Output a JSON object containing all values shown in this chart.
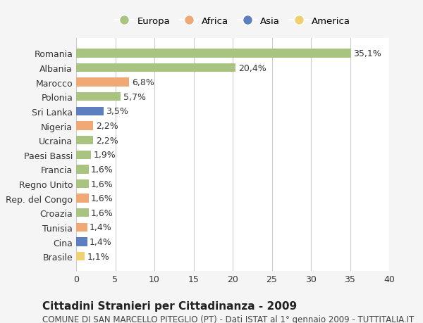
{
  "countries": [
    "Romania",
    "Albania",
    "Marocco",
    "Polonia",
    "Sri Lanka",
    "Nigeria",
    "Ucraina",
    "Paesi Bassi",
    "Francia",
    "Regno Unito",
    "Rep. del Congo",
    "Croazia",
    "Tunisia",
    "Cina",
    "Brasile"
  ],
  "values": [
    35.1,
    20.4,
    6.8,
    5.7,
    3.5,
    2.2,
    2.2,
    1.9,
    1.6,
    1.6,
    1.6,
    1.6,
    1.4,
    1.4,
    1.1
  ],
  "labels": [
    "35,1%",
    "20,4%",
    "6,8%",
    "5,7%",
    "3,5%",
    "2,2%",
    "2,2%",
    "1,9%",
    "1,6%",
    "1,6%",
    "1,6%",
    "1,6%",
    "1,4%",
    "1,4%",
    "1,1%"
  ],
  "continents": [
    "Europa",
    "Europa",
    "Africa",
    "Europa",
    "Asia",
    "Africa",
    "Europa",
    "Europa",
    "Europa",
    "Europa",
    "Africa",
    "Europa",
    "Africa",
    "Asia",
    "America"
  ],
  "colors": {
    "Europa": "#a8c480",
    "Africa": "#f0a875",
    "Asia": "#5b7fbf",
    "America": "#f0d070"
  },
  "legend_order": [
    "Europa",
    "Africa",
    "Asia",
    "America"
  ],
  "legend_colors": [
    "#a8c480",
    "#f0a875",
    "#5b7fbf",
    "#f0d070"
  ],
  "xlim": [
    0,
    40
  ],
  "xticks": [
    0,
    5,
    10,
    15,
    20,
    25,
    30,
    35,
    40
  ],
  "title": "Cittadini Stranieri per Cittadinanza - 2009",
  "subtitle": "COMUNE DI SAN MARCELLO PITEGLIO (PT) - Dati ISTAT al 1° gennaio 2009 - TUTTITALIA.IT",
  "background_color": "#f5f5f5",
  "plot_background": "#ffffff",
  "grid_color": "#cccccc",
  "label_fontsize": 9,
  "title_fontsize": 11,
  "subtitle_fontsize": 8.5
}
